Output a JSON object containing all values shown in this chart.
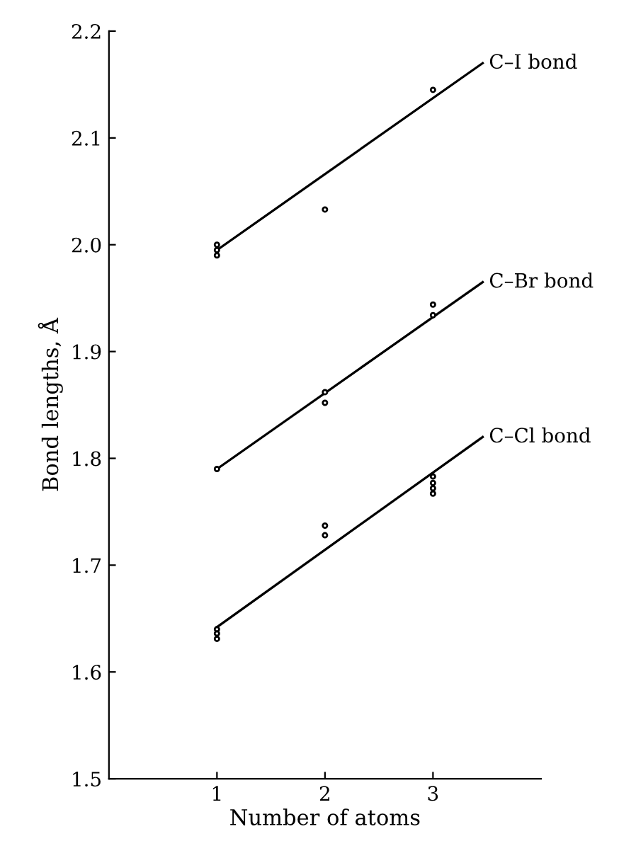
{
  "chart_data": {
    "type": "scatter",
    "xlabel": "Number of atoms",
    "ylabel": "Bond lengths, Å",
    "xlim": [
      0,
      4
    ],
    "xticks": [
      1,
      2,
      3
    ],
    "ylim": [
      1.5,
      2.2
    ],
    "yticks": [
      1.5,
      1.6,
      1.7,
      1.8,
      1.9,
      {
        "value": 2,
        "label": "2.0"
      },
      2.1,
      2.2
    ],
    "grid": false,
    "legend": false,
    "marker": "circle",
    "series": [
      {
        "color": "#000000",
        "x": [
          1,
          1,
          1,
          2,
          3
        ],
        "values": [
          2.0,
          1.995,
          1.99,
          2.033,
          2.145
        ]
      },
      {
        "color": "#000000",
        "x": [
          1,
          2,
          2,
          3,
          3
        ],
        "values": [
          1.79,
          1.862,
          1.852,
          1.944,
          1.934
        ]
      },
      {
        "color": "#000000",
        "x": [
          1,
          1,
          1,
          2,
          2,
          3,
          3,
          3,
          3
        ],
        "values": [
          1.64,
          1.636,
          1.631,
          1.737,
          1.728,
          1.783,
          1.777,
          1.772,
          1.767
        ]
      },
      {
        "type": "line",
        "name": "C–I bond",
        "color": "#000000",
        "x": [
          1,
          3.46
        ],
        "values": [
          1.995,
          2.17
        ],
        "line_style": "solid",
        "marker": "none"
      },
      {
        "type": "line",
        "name": "C–Br bond",
        "color": "#000000",
        "x": [
          1,
          3.46
        ],
        "values": [
          1.79,
          1.965
        ],
        "line_style": "solid",
        "marker": "none"
      },
      {
        "type": "line",
        "name": "C–Cl bond",
        "color": "#000000",
        "x": [
          1,
          3.46
        ],
        "values": [
          1.642,
          1.82
        ],
        "line_style": "solid",
        "marker": "none"
      }
    ]
  }
}
